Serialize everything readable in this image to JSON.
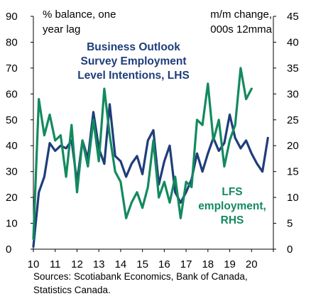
{
  "chart_data": {
    "type": "line",
    "title": "",
    "x_tick_labels": [
      "10",
      "11",
      "12",
      "13",
      "14",
      "15",
      "16",
      "17",
      "18",
      "19",
      "20"
    ],
    "x_range": [
      2010,
      2021
    ],
    "left_axis": {
      "label_lines": [
        "% balance, one",
        "year lag"
      ],
      "ticks": [
        0,
        10,
        20,
        30,
        40,
        50,
        60,
        70,
        80,
        90
      ],
      "range": [
        0,
        90
      ]
    },
    "right_axis": {
      "label_lines": [
        "m/m change,",
        "000s 12mma"
      ],
      "ticks": [
        0,
        5,
        10,
        15,
        20,
        25,
        30,
        35,
        40,
        45
      ],
      "range": [
        0,
        45
      ]
    },
    "series": [
      {
        "name_lines": [
          "Business Outlook",
          "Survey Employment",
          "Level Intentions, LHS"
        ],
        "axis": "left",
        "color": "#1f3d7a",
        "x": [
          2010.0,
          2010.25,
          2010.5,
          2010.75,
          2011.0,
          2011.25,
          2011.5,
          2011.75,
          2012.0,
          2012.25,
          2012.5,
          2012.75,
          2013.0,
          2013.25,
          2013.5,
          2013.75,
          2014.0,
          2014.25,
          2014.5,
          2014.75,
          2015.0,
          2015.25,
          2015.5,
          2015.75,
          2016.0,
          2016.25,
          2016.5,
          2016.75,
          2017.0,
          2017.25,
          2017.5,
          2017.75,
          2018.0,
          2018.25,
          2018.5,
          2018.75,
          2019.0,
          2019.25,
          2019.5,
          2019.75,
          2020.0,
          2020.25,
          2020.5,
          2020.75
        ],
        "values": [
          1,
          22,
          28,
          41,
          38,
          40,
          39,
          42,
          26,
          42,
          35,
          53,
          39,
          33,
          56,
          36,
          34,
          28,
          33,
          36,
          29,
          42,
          46,
          25,
          34,
          40,
          22,
          18,
          22,
          27,
          37,
          30,
          37,
          43,
          38,
          41,
          52,
          43,
          39,
          42,
          37,
          33,
          30,
          43
        ]
      },
      {
        "name_lines": [
          "LFS",
          "employment,",
          "RHS"
        ],
        "axis": "right",
        "color": "#138a5e",
        "x": [
          2010.0,
          2010.25,
          2010.5,
          2010.75,
          2011.0,
          2011.25,
          2011.5,
          2011.75,
          2012.0,
          2012.25,
          2012.5,
          2012.75,
          2013.0,
          2013.25,
          2013.5,
          2013.75,
          2014.0,
          2014.25,
          2014.5,
          2014.75,
          2015.0,
          2015.25,
          2015.5,
          2015.75,
          2016.0,
          2016.25,
          2016.5,
          2016.75,
          2017.0,
          2017.25,
          2017.5,
          2017.75,
          2018.0,
          2018.25,
          2018.5,
          2018.75,
          2019.0,
          2019.25,
          2019.5,
          2019.75,
          2020.0
        ],
        "values": [
          2,
          29,
          22,
          26,
          21,
          22,
          14,
          24,
          11,
          21,
          16,
          25,
          17,
          31,
          22,
          15,
          13,
          6,
          9,
          11,
          8,
          12,
          21,
          10,
          13,
          9,
          14,
          6,
          13,
          12,
          25,
          24,
          32,
          21,
          25,
          16,
          21,
          24,
          35,
          29,
          31
        ]
      }
    ],
    "source_text": "Sources: Scotiabank Economics, Bank of Canada,\nStatistics Canada."
  }
}
